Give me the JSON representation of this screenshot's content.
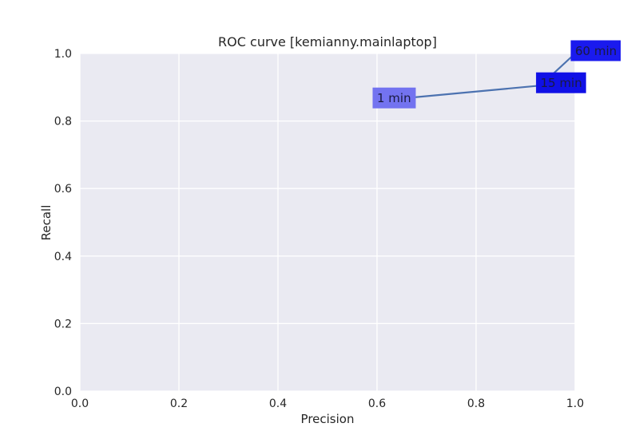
{
  "chart_data": {
    "type": "line",
    "title": "ROC curve [kemianny.mainlaptop]",
    "xlabel": "Precision",
    "ylabel": "Recall",
    "xlim": [
      0.0,
      1.0
    ],
    "ylim": [
      0.0,
      1.0
    ],
    "grid": true,
    "xticks": [
      "0.0",
      "0.2",
      "0.4",
      "0.6",
      "0.8",
      "1.0"
    ],
    "yticks": [
      "0.0",
      "0.2",
      "0.4",
      "0.6",
      "0.8",
      "1.0"
    ],
    "series": [
      {
        "x": [
          0.6,
          0.93,
          1.0
        ],
        "y": [
          0.86,
          0.905,
          1.0
        ],
        "color": "#4c72b0"
      }
    ],
    "annotations": [
      {
        "label": "1 min",
        "x": 0.6,
        "y": 0.86,
        "color": "#7373f0"
      },
      {
        "label": "15 min",
        "x": 0.93,
        "y": 0.905,
        "color": "#1010e6"
      },
      {
        "label": "60 min",
        "x": 1.0,
        "y": 1.0,
        "color": "#1a1aee"
      }
    ],
    "colors": {
      "plot_background": "#eaeaf2",
      "grid": "#ffffff",
      "line": "#4c72b0"
    }
  }
}
